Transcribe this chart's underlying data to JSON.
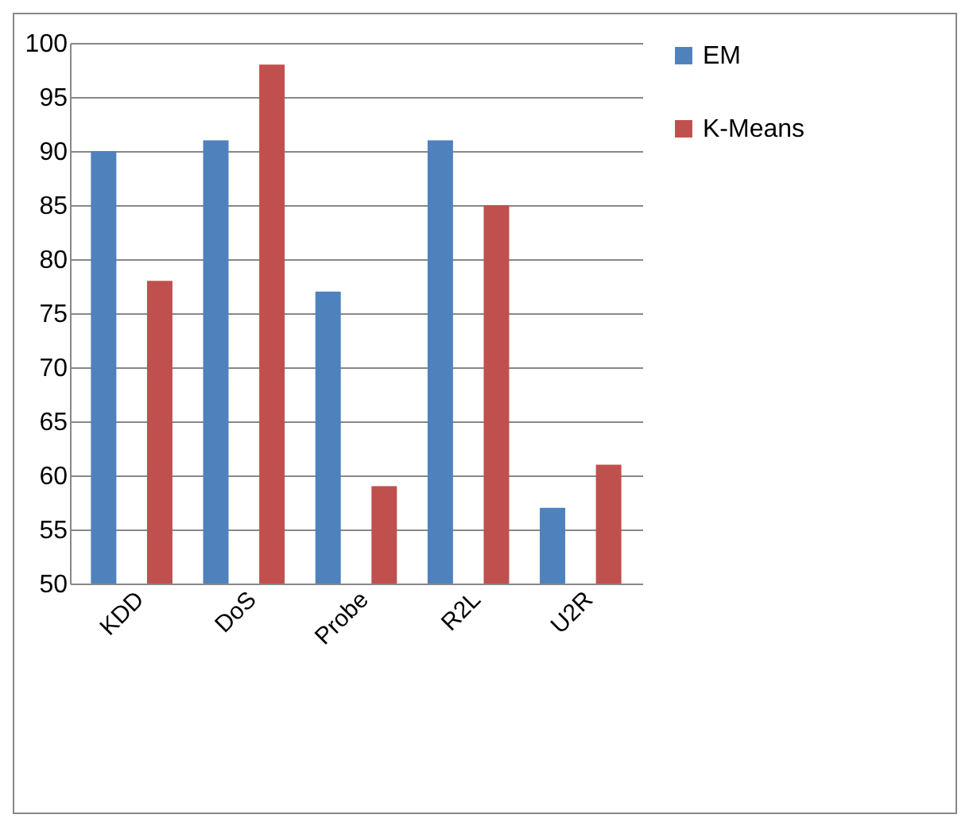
{
  "chart_data": {
    "type": "bar",
    "categories": [
      "KDD",
      "DoS",
      "Probe",
      "R2L",
      "U2R"
    ],
    "series": [
      {
        "name": "EM",
        "color": "#4f81bd",
        "values": [
          90,
          91,
          77,
          91,
          57
        ]
      },
      {
        "name": "K-Means",
        "color": "#c0504d",
        "values": [
          78,
          98,
          59,
          85,
          61
        ]
      }
    ],
    "ylim": [
      50,
      100
    ],
    "yticks": [
      50,
      55,
      60,
      65,
      70,
      75,
      80,
      85,
      90,
      95,
      100
    ],
    "grid": "y",
    "legend": "right"
  }
}
